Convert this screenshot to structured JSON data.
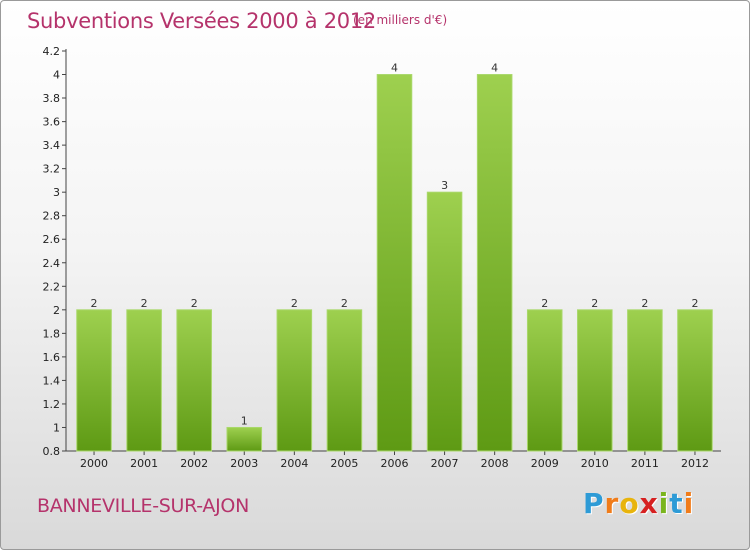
{
  "header": {
    "title": "Subventions Versées 2000 à 2012",
    "unit": "(en milliers d'€)"
  },
  "footer": {
    "commune": "BANNEVILLE-SUR-AJON",
    "logo": [
      "P",
      "r",
      "o",
      "x",
      "i",
      "t",
      "i"
    ],
    "logo_colors": [
      "#2e9bd6",
      "#f07c1a",
      "#e8b40c",
      "#d62020",
      "#7ab51d",
      "#2e9bd6",
      "#f07c1a"
    ]
  },
  "chart_data": {
    "type": "bar",
    "categories": [
      "2000",
      "2001",
      "2002",
      "2003",
      "2004",
      "2005",
      "2006",
      "2007",
      "2008",
      "2009",
      "2010",
      "2011",
      "2012"
    ],
    "values": [
      2,
      2,
      2,
      1,
      2,
      2,
      4,
      3,
      4,
      2,
      2,
      2,
      2
    ],
    "data_labels": [
      "2",
      "2",
      "2",
      "1",
      "2",
      "2",
      "4",
      "3",
      "4",
      "2",
      "2",
      "2",
      "2"
    ],
    "title": "Subventions Versées 2000 à 2012",
    "xlabel": "",
    "ylabel": "",
    "ylim": [
      0.8,
      4.2
    ],
    "yticks": [
      0.8,
      1,
      1.2,
      1.4,
      1.6,
      1.8,
      2,
      2.2,
      2.4,
      2.6,
      2.8,
      3,
      3.2,
      3.4,
      3.6,
      3.8,
      4,
      4.2
    ],
    "ytick_labels": [
      "0.8",
      "1",
      "1.2",
      "1.4",
      "1.6",
      "1.8",
      "2",
      "2.2",
      "2.4",
      "2.6",
      "2.8",
      "3",
      "3.2",
      "3.4",
      "3.6",
      "3.8",
      "4",
      "4.2"
    ],
    "grid": false,
    "bar_color": "#7cbf2a"
  }
}
